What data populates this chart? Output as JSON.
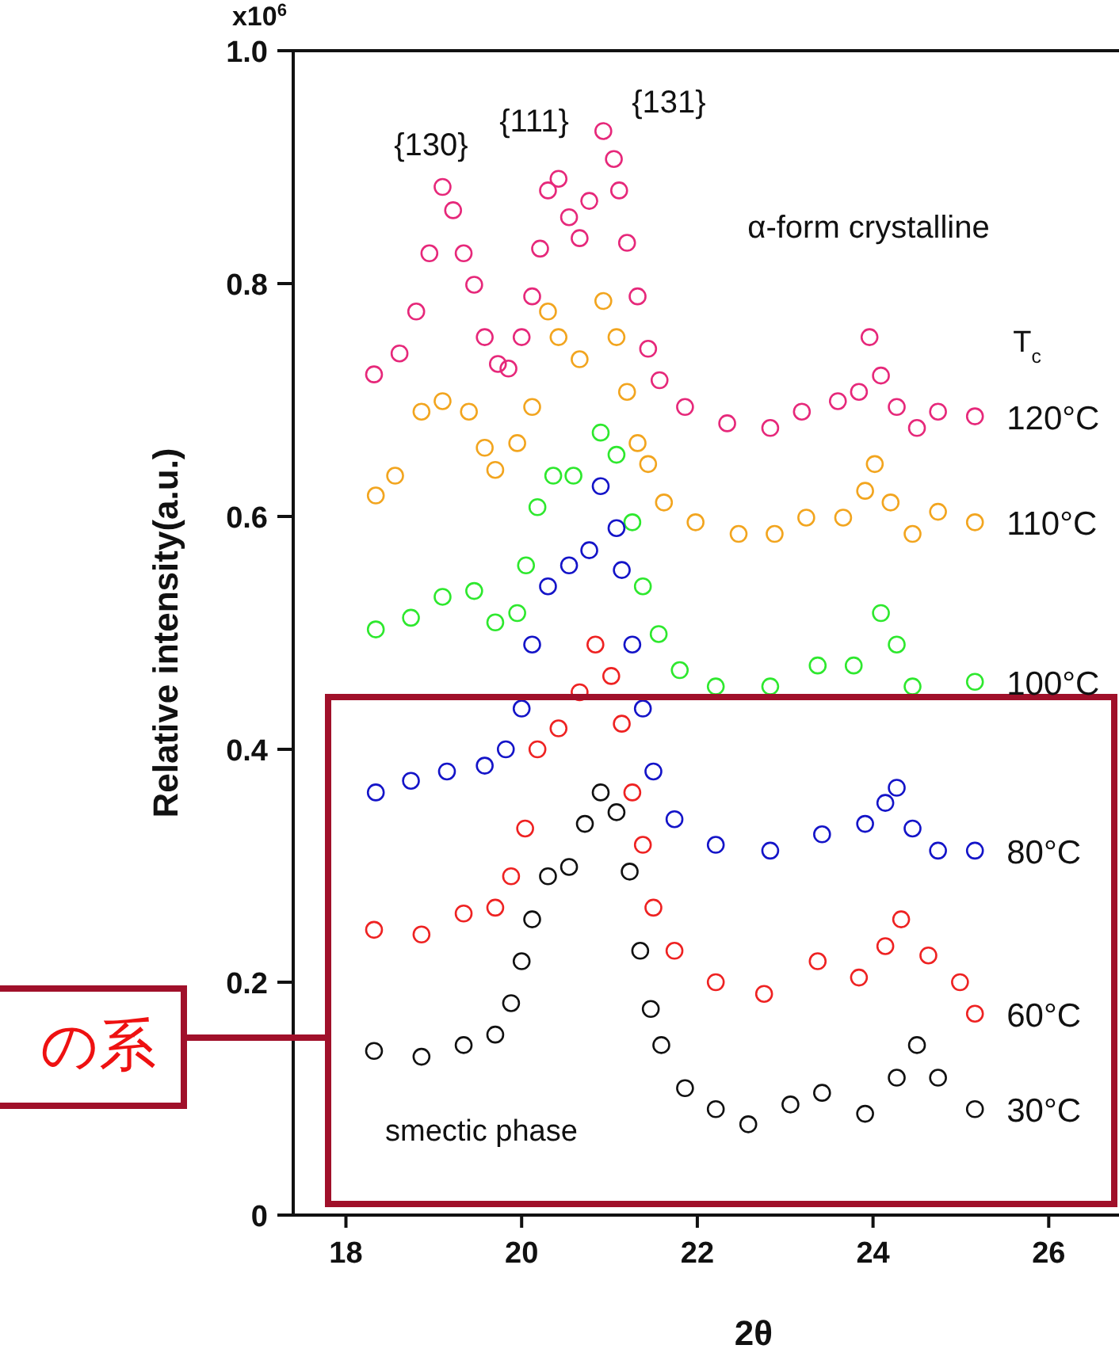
{
  "chart_data": {
    "type": "scatter",
    "xlabel": "2θ",
    "ylabel": "Relative intensity(a.u.)",
    "xlim": [
      17.4,
      26.8
    ],
    "xticks": [
      18,
      20,
      22,
      24,
      26
    ],
    "ylim": [
      0,
      1.0
    ],
    "yticks": [
      0,
      0.2,
      0.4,
      0.6,
      0.8,
      {
        "value": 1.0,
        "label": "1.0"
      }
    ],
    "marker": "circle",
    "grid": false,
    "legend": false,
    "annotations": [
      "{130}",
      "{111}",
      "{131}",
      "α-form crystalline",
      "T$_{c}$",
      "smectic phase",
      "の系",
      "x10$^{6}$"
    ],
    "series": [
      {
        "name": "120°C",
        "color": "#e6287a",
        "x": [
          18.32,
          18.61,
          18.8,
          18.95,
          19.1,
          19.22,
          19.34,
          19.46,
          19.58,
          19.73,
          19.85,
          20.0,
          20.12,
          20.21,
          20.3,
          20.42,
          20.54,
          20.66,
          20.77,
          20.93,
          21.05,
          21.11,
          21.2,
          21.32,
          21.44,
          21.57,
          21.86,
          22.34,
          22.83,
          23.19,
          23.6,
          23.84,
          23.96,
          24.09,
          24.27,
          24.5,
          24.74,
          25.16
        ],
        "values": [
          0.722,
          0.74,
          0.776,
          0.826,
          0.883,
          0.863,
          0.826,
          0.799,
          0.754,
          0.731,
          0.727,
          0.754,
          0.789,
          0.83,
          0.88,
          0.89,
          0.857,
          0.839,
          0.871,
          0.931,
          0.907,
          0.88,
          0.835,
          0.789,
          0.744,
          0.717,
          0.694,
          0.68,
          0.676,
          0.69,
          0.699,
          0.707,
          0.754,
          0.721,
          0.694,
          0.676,
          0.69,
          0.686
        ]
      },
      {
        "name": "110°C",
        "color": "#f2a51f",
        "x": [
          18.34,
          18.56,
          18.86,
          19.1,
          19.4,
          19.58,
          19.7,
          19.95,
          20.12,
          20.3,
          20.42,
          20.66,
          20.93,
          21.08,
          21.2,
          21.32,
          21.44,
          21.62,
          21.98,
          22.47,
          22.88,
          23.24,
          23.66,
          23.91,
          24.02,
          24.2,
          24.45,
          24.74,
          25.16
        ],
        "values": [
          0.618,
          0.635,
          0.69,
          0.699,
          0.69,
          0.659,
          0.64,
          0.663,
          0.694,
          0.776,
          0.754,
          0.735,
          0.785,
          0.754,
          0.707,
          0.663,
          0.645,
          0.612,
          0.595,
          0.585,
          0.585,
          0.599,
          0.599,
          0.622,
          0.645,
          0.612,
          0.585,
          0.604,
          0.595
        ]
      },
      {
        "name": "100°C",
        "color": "#2ee82e",
        "x": [
          18.34,
          18.74,
          19.1,
          19.46,
          19.7,
          19.95,
          20.05,
          20.18,
          20.36,
          20.59,
          20.9,
          21.08,
          21.26,
          21.38,
          21.56,
          21.8,
          22.21,
          22.83,
          23.37,
          23.78,
          24.09,
          24.27,
          24.45,
          25.16
        ],
        "values": [
          0.503,
          0.513,
          0.531,
          0.536,
          0.509,
          0.517,
          0.558,
          0.608,
          0.635,
          0.635,
          0.672,
          0.653,
          0.595,
          0.54,
          0.499,
          0.468,
          0.454,
          0.454,
          0.472,
          0.472,
          0.517,
          0.49,
          0.454,
          0.458
        ]
      },
      {
        "name": "80°C",
        "color": "#1414c8",
        "x": [
          18.34,
          18.74,
          19.15,
          19.58,
          19.82,
          20.0,
          20.12,
          20.3,
          20.54,
          20.77,
          20.9,
          21.08,
          21.14,
          21.26,
          21.38,
          21.5,
          21.74,
          22.21,
          22.83,
          23.42,
          23.91,
          24.14,
          24.27,
          24.45,
          24.74,
          25.16
        ],
        "values": [
          0.363,
          0.373,
          0.381,
          0.386,
          0.4,
          0.435,
          0.49,
          0.54,
          0.558,
          0.571,
          0.626,
          0.59,
          0.554,
          0.49,
          0.435,
          0.381,
          0.34,
          0.318,
          0.313,
          0.327,
          0.336,
          0.354,
          0.367,
          0.332,
          0.313,
          0.313
        ]
      },
      {
        "name": "60°C",
        "color": "#ee2222",
        "x": [
          18.32,
          18.86,
          19.34,
          19.7,
          19.88,
          20.04,
          20.18,
          20.42,
          20.66,
          20.84,
          21.02,
          21.14,
          21.26,
          21.38,
          21.5,
          21.74,
          22.21,
          22.76,
          23.37,
          23.84,
          24.14,
          24.32,
          24.63,
          24.99,
          25.16
        ],
        "values": [
          0.245,
          0.241,
          0.259,
          0.264,
          0.291,
          0.332,
          0.4,
          0.418,
          0.449,
          0.49,
          0.463,
          0.422,
          0.363,
          0.318,
          0.264,
          0.227,
          0.2,
          0.19,
          0.218,
          0.204,
          0.231,
          0.254,
          0.223,
          0.2,
          0.173
        ]
      },
      {
        "name": "30°C",
        "color": "#111111",
        "x": [
          18.32,
          18.86,
          19.34,
          19.7,
          19.88,
          20.0,
          20.12,
          20.3,
          20.54,
          20.72,
          20.9,
          21.08,
          21.23,
          21.35,
          21.47,
          21.59,
          21.86,
          22.21,
          22.58,
          23.06,
          23.42,
          23.91,
          24.27,
          24.5,
          24.74,
          25.16
        ],
        "values": [
          0.141,
          0.136,
          0.146,
          0.155,
          0.182,
          0.218,
          0.254,
          0.291,
          0.299,
          0.336,
          0.363,
          0.346,
          0.295,
          0.227,
          0.177,
          0.146,
          0.109,
          0.091,
          0.078,
          0.095,
          0.105,
          0.087,
          0.118,
          0.146,
          0.118,
          0.091
        ]
      }
    ]
  }
}
